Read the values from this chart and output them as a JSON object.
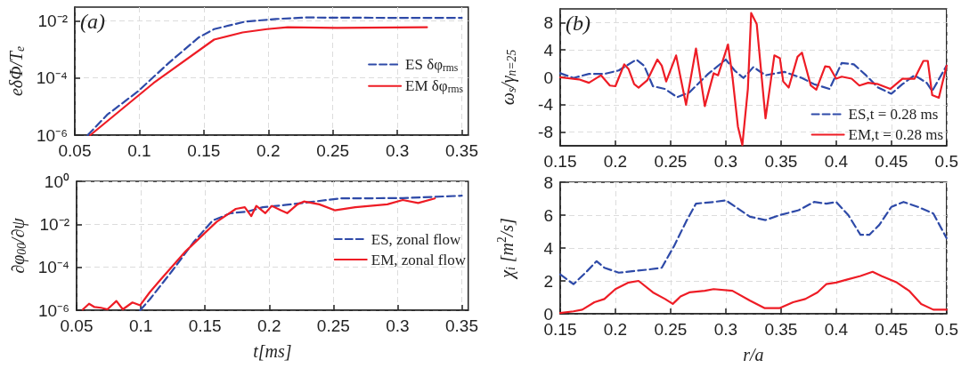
{
  "chart_data": [
    {
      "type": "line",
      "ylabel": "eδΦ/T$_{e}$",
      "annotations": [
        "(a)"
      ],
      "log": "y",
      "grid": true,
      "legend": "right",
      "xlim": [
        0.05,
        0.355
      ],
      "xticks": [
        0.05,
        0.1,
        0.15,
        0.2,
        0.25,
        0.3,
        0.35
      ],
      "ylim": [
        1e-06,
        0.03
      ],
      "yticks": [
        {
          "value": 1e-06,
          "label": "10⁻⁶"
        },
        {
          "value": 0.0001,
          "label": "10⁻⁴"
        },
        {
          "value": 0.01,
          "label": "10⁻²"
        }
      ],
      "series": [
        {
          "name": "ES δφ$_{rms}$",
          "color": "#2e4aa8",
          "line_style": "dashed",
          "x": [
            0.06,
            0.075,
            0.099,
            0.123,
            0.146,
            0.158,
            0.182,
            0.206,
            0.229,
            0.3,
            0.35
          ],
          "values": [
            1e-06,
            5.1e-06,
            3.4e-05,
            0.00034,
            0.0026,
            0.0051,
            0.0093,
            0.0115,
            0.013,
            0.0126,
            0.0126
          ]
        },
        {
          "name": "EM δφ$_{rms}$",
          "color": "#ee1c25",
          "line_style": "solid",
          "x": [
            0.062,
            0.111,
            0.158,
            0.18,
            0.199,
            0.215,
            0.253,
            0.323
          ],
          "values": [
            1e-06,
            6.6e-05,
            0.0022,
            0.0039,
            0.0051,
            0.0059,
            0.0056,
            0.0059
          ]
        }
      ]
    },
    {
      "type": "line",
      "xlabel": "t[ms]",
      "ylabel": "∂φ$_{00}$/∂ψ",
      "log": "y",
      "grid": true,
      "legend": "right",
      "xlim": [
        0.05,
        0.355
      ],
      "xticks": [
        0.05,
        0.1,
        0.15,
        0.2,
        0.25,
        0.3,
        0.35
      ],
      "ylim": [
        1e-06,
        1
      ],
      "yticks": [
        {
          "value": 1e-06,
          "label": "10⁻⁶"
        },
        {
          "value": 0.0001,
          "label": "10⁻⁴"
        },
        {
          "value": 0.01,
          "label": "10⁻²"
        },
        {
          "value": 1,
          "label": "10⁰"
        }
      ],
      "series": [
        {
          "name": "ES, zonal flow",
          "color": "#2e4aa8",
          "line_style": "dashed",
          "x": [
            0.0995,
            0.107,
            0.124,
            0.141,
            0.156,
            0.17,
            0.183,
            0.195,
            0.212,
            0.231,
            0.255,
            0.304,
            0.35
          ],
          "values": [
            1e-06,
            3.2e-06,
            6.3e-05,
            0.00145,
            0.015,
            0.033,
            0.039,
            0.062,
            0.079,
            0.107,
            0.16,
            0.166,
            0.214
          ]
        },
        {
          "name": "EM, zonal flow",
          "color": "#ee1c25",
          "line_style": "solid",
          "x": [
            0.0548,
            0.0597,
            0.064,
            0.069,
            0.074,
            0.081,
            0.086,
            0.0935,
            0.0995,
            0.107,
            0.115,
            0.135,
            0.159,
            0.174,
            0.181,
            0.186,
            0.19,
            0.197,
            0.202,
            0.209,
            0.214,
            0.222,
            0.227,
            0.239,
            0.251,
            0.267,
            0.292,
            0.304,
            0.316,
            0.329
          ],
          "values": [
            1.07e-06,
            2e-06,
            1.4e-06,
            1.3e-06,
            1.1e-06,
            2.7e-06,
            1.1e-06,
            2.3e-06,
            1.7e-06,
            6.9e-06,
            2.5e-05,
            0.00056,
            0.013,
            0.052,
            0.062,
            0.024,
            0.072,
            0.033,
            0.072,
            0.045,
            0.033,
            0.085,
            0.115,
            0.085,
            0.045,
            0.062,
            0.085,
            0.135,
            0.098,
            0.16
          ]
        }
      ]
    },
    {
      "type": "line",
      "ylabel": "ω$_{s}$/γ$_{n=25}$",
      "annotations": [
        "(b)"
      ],
      "grid": true,
      "legend": "bottom right",
      "xlim": [
        0.15,
        0.5
      ],
      "xticks": [
        0.15,
        0.2,
        0.25,
        0.3,
        0.35,
        0.4,
        0.45,
        0.5
      ],
      "ylim": [
        -10,
        10
      ],
      "yticks": [
        -8,
        -4,
        0,
        4,
        8
      ],
      "series": [
        {
          "name": "ES,t = 0.28 ms",
          "color": "#2e4aa8",
          "line_style": "dashed",
          "x": [
            0.15,
            0.162,
            0.176,
            0.19,
            0.203,
            0.219,
            0.226,
            0.234,
            0.245,
            0.256,
            0.267,
            0.284,
            0.3,
            0.308,
            0.316,
            0.325,
            0.336,
            0.353,
            0.369,
            0.38,
            0.394,
            0.405,
            0.416,
            0.427,
            0.438,
            0.45,
            0.46,
            0.471,
            0.482,
            0.487,
            0.5
          ],
          "values": [
            0.6,
            -0.1,
            0.5,
            0.5,
            1.0,
            2.6,
            1.7,
            -1.3,
            -1.7,
            -2.9,
            -2.2,
            0.5,
            2.6,
            1.0,
            -0.1,
            1.5,
            0.3,
            0.8,
            -0.1,
            -1.0,
            -1.7,
            2.1,
            1.9,
            0.3,
            -1.5,
            -2.4,
            -1.0,
            0.3,
            -0.8,
            -2.0,
            1.7
          ]
        },
        {
          "name": "EM,t = 0.28 ms",
          "color": "#ee1c25",
          "line_style": "solid",
          "x": [
            0.15,
            0.167,
            0.176,
            0.187,
            0.195,
            0.2,
            0.208,
            0.212,
            0.217,
            0.221,
            0.229,
            0.238,
            0.242,
            0.246,
            0.255,
            0.264,
            0.273,
            0.281,
            0.289,
            0.293,
            0.302,
            0.306,
            0.311,
            0.315,
            0.32,
            0.323,
            0.328,
            0.336,
            0.344,
            0.349,
            0.352,
            0.357,
            0.365,
            0.369,
            0.377,
            0.382,
            0.39,
            0.394,
            0.4,
            0.405,
            0.414,
            0.421,
            0.429,
            0.438,
            0.449,
            0.46,
            0.471,
            0.479,
            0.483,
            0.487,
            0.493,
            0.5
          ],
          "values": [
            0,
            -0.3,
            -0.8,
            0.3,
            -1.2,
            -1.3,
            1.9,
            1.2,
            -1.0,
            -1.5,
            -0.4,
            2.6,
            1.7,
            -0.6,
            3.2,
            -4.0,
            4.2,
            -4.2,
            0.6,
            0.3,
            4.8,
            0.1,
            -7.2,
            -9.9,
            -1.7,
            9.4,
            7.8,
            -6.0,
            3.2,
            2.8,
            -0.6,
            -1.5,
            3.0,
            3.6,
            -1.2,
            -1.8,
            1.6,
            1.5,
            -0.2,
            0.1,
            -0.2,
            -1.2,
            -0.8,
            -1.0,
            -1.7,
            -0.2,
            -0.2,
            2.4,
            2.4,
            -2.6,
            -3.0,
            1.7
          ]
        }
      ]
    },
    {
      "type": "line",
      "xlabel": "r/a",
      "ylabel": "χ$_{i}$ [m$^{2}$/s]",
      "grid": true,
      "xlim": [
        0.15,
        0.5
      ],
      "xticks": [
        0.15,
        0.2,
        0.25,
        0.3,
        0.35,
        0.4,
        0.45,
        0.5
      ],
      "ylim": [
        0,
        8
      ],
      "yticks": [
        0,
        2,
        4,
        6,
        8
      ],
      "series": [
        {
          "color": "#2e4aa8",
          "line_style": "dashed",
          "x": [
            0.15,
            0.162,
            0.173,
            0.183,
            0.19,
            0.203,
            0.217,
            0.231,
            0.242,
            0.253,
            0.264,
            0.273,
            0.289,
            0.3,
            0.311,
            0.322,
            0.336,
            0.349,
            0.366,
            0.38,
            0.391,
            0.4,
            0.411,
            0.422,
            0.43,
            0.439,
            0.45,
            0.461,
            0.474,
            0.488,
            0.5
          ],
          "values": [
            2.4,
            1.8,
            2.5,
            3.2,
            2.8,
            2.5,
            2.6,
            2.7,
            2.8,
            4.1,
            5.6,
            6.7,
            6.8,
            6.9,
            6.4,
            5.9,
            5.7,
            6.0,
            6.3,
            6.8,
            6.7,
            6.8,
            6.0,
            4.8,
            4.8,
            5.4,
            6.5,
            6.8,
            6.5,
            6.1,
            4.6
          ]
        },
        {
          "color": "#ee1c25",
          "line_style": "solid",
          "x": [
            0.15,
            0.162,
            0.17,
            0.181,
            0.19,
            0.2,
            0.212,
            0.221,
            0.234,
            0.245,
            0.252,
            0.259,
            0.267,
            0.281,
            0.289,
            0.306,
            0.322,
            0.335,
            0.349,
            0.361,
            0.372,
            0.383,
            0.391,
            0.4,
            0.411,
            0.422,
            0.433,
            0.441,
            0.455,
            0.466,
            0.477,
            0.488,
            0.5
          ],
          "values": [
            0.05,
            0.15,
            0.25,
            0.7,
            0.9,
            1.5,
            1.9,
            2.0,
            1.3,
            0.9,
            0.6,
            1.05,
            1.3,
            1.4,
            1.5,
            1.4,
            0.8,
            0.35,
            0.35,
            0.7,
            0.9,
            1.3,
            1.8,
            1.9,
            2.1,
            2.3,
            2.55,
            2.3,
            1.9,
            1.4,
            0.6,
            0.25,
            0.25
          ]
        }
      ]
    }
  ]
}
